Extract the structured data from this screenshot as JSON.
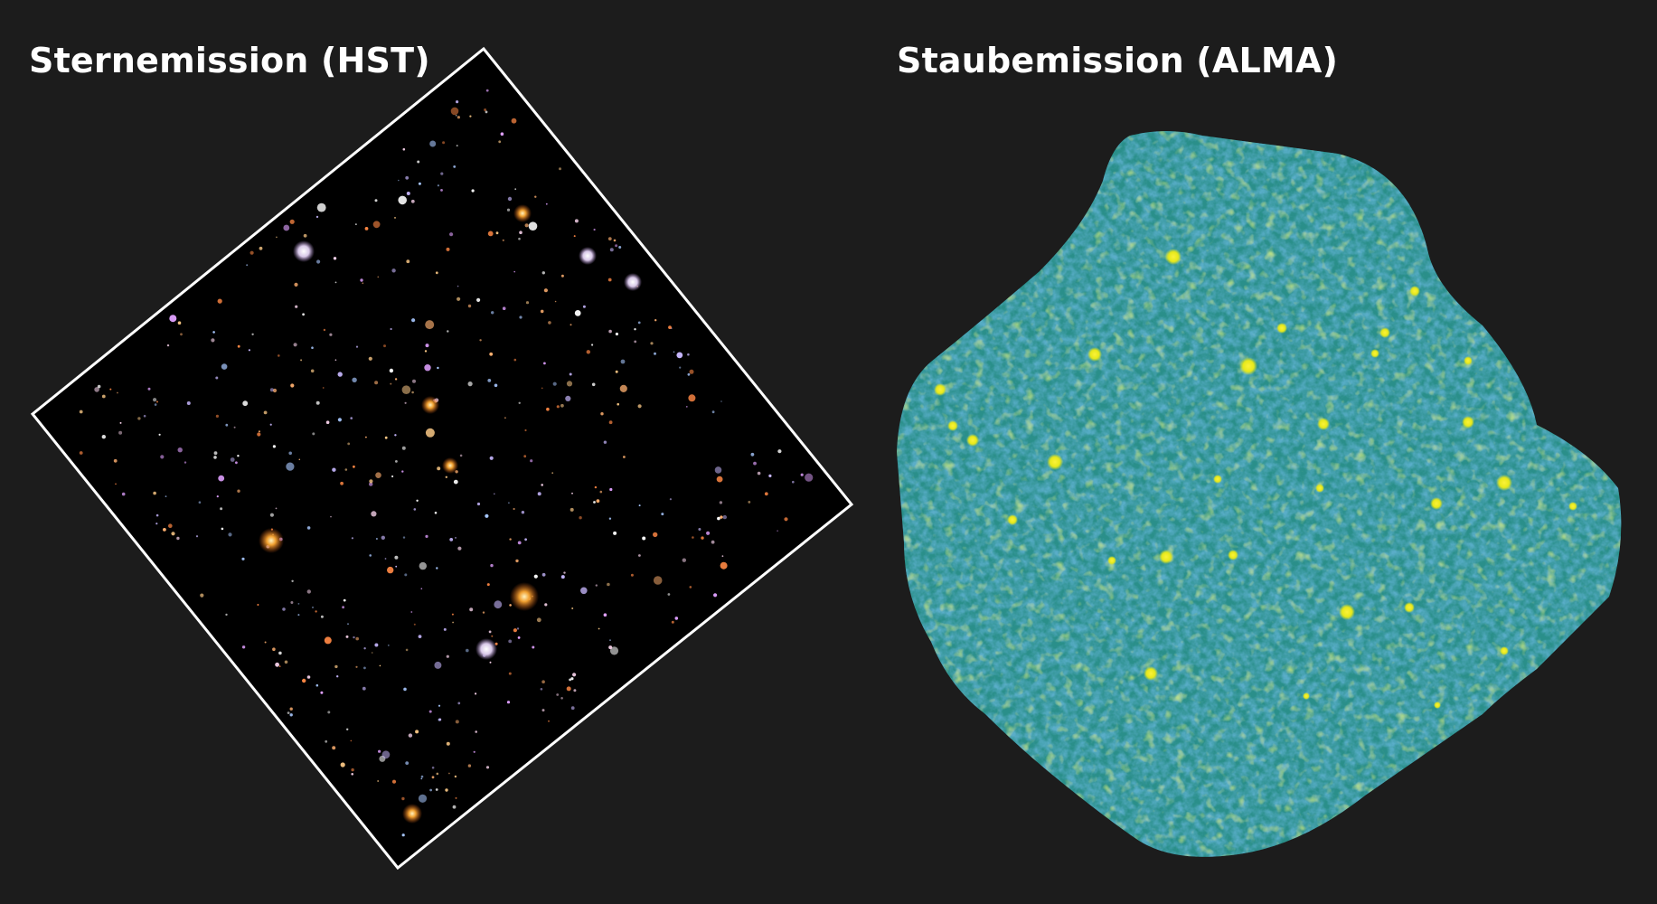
{
  "panels": {
    "left": {
      "title": "Sternemission (HST)",
      "frame_color": "#ffffff",
      "background_color": "#000000"
    },
    "right": {
      "title": "Staubemission (ALMA)",
      "map_color_base": "#2a8f8a",
      "map_color_dark": "#3b3f94",
      "map_color_bright": "#e6e81a"
    }
  }
}
